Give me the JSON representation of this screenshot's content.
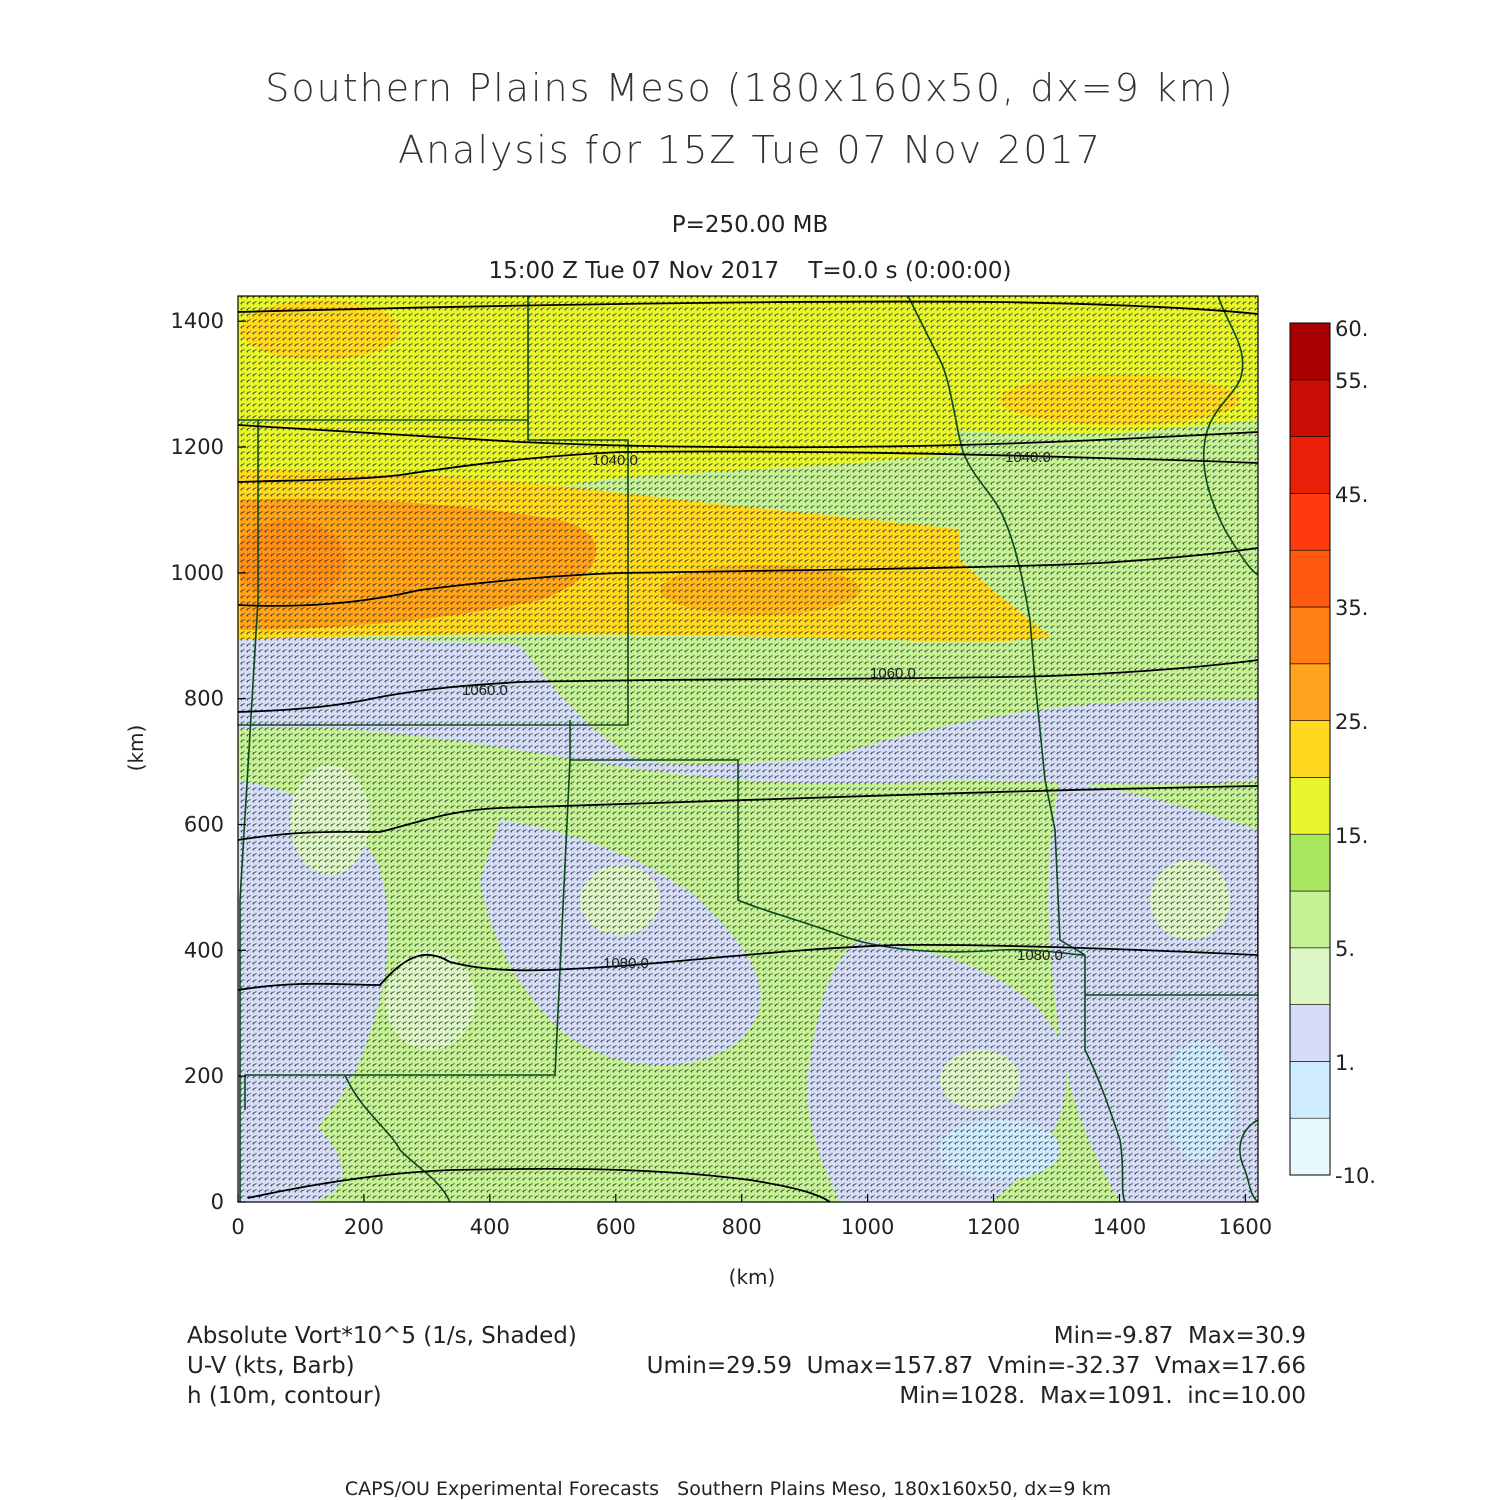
{
  "title_line1": "Southern Plains Meso (180x160x50, dx=9 km)",
  "title_line2": "Analysis for 15Z Tue 07 Nov 2017",
  "level_label": "P=250.00 MB",
  "time_label": "15:00 Z Tue 07 Nov 2017    T=0.0 s (0:00:00)",
  "x_axis": {
    "label": "(km)",
    "min": 0,
    "max": 1620,
    "ticks": [
      0,
      200,
      400,
      600,
      800,
      1000,
      1200,
      1400,
      1600
    ]
  },
  "y_axis": {
    "label": "(km)",
    "min": 0,
    "max": 1440,
    "ticks": [
      0,
      200,
      400,
      600,
      800,
      1000,
      1200,
      1400
    ]
  },
  "colorbar": {
    "labels": [
      "60.",
      "55.",
      "45.",
      "35.",
      "25.",
      "15.",
      "5.",
      "1.",
      "-10."
    ],
    "colors": [
      "#e8f8ff",
      "#cfecff",
      "#d4dcf6",
      "#dcf6c6",
      "#c6f296",
      "#a8e85e",
      "#e8f62e",
      "#ffd820",
      "#ffa41c",
      "#ff7e16",
      "#ff5a10",
      "#ff3a0c",
      "#e82008",
      "#c80e04",
      "#a80000"
    ]
  },
  "contours": {
    "labels": [
      {
        "text": "1040.0",
        "x": 620,
        "y": 1185
      },
      {
        "text": "1040.0",
        "x": 1280,
        "y": 1185
      },
      {
        "text": "1060.0",
        "x": 1070,
        "y": 840
      },
      {
        "text": "1060.0",
        "x": 390,
        "y": 818
      },
      {
        "text": "1080.0",
        "x": 620,
        "y": 393
      },
      {
        "text": "1080.0",
        "x": 1240,
        "y": 400
      }
    ]
  },
  "legend": {
    "left": [
      "Absolute Vort*10^5 (1/s, Shaded)",
      "U-V (kts, Barb)",
      "h (10m, contour)"
    ],
    "right": [
      "Min=-9.87  Max=30.9",
      "Umin=29.59  Umax=157.87  Vmin=-32.37  Vmax=17.66",
      "Min=1028.  Max=1091.  inc=10.00"
    ]
  },
  "footer": "CAPS/OU Experimental Forecasts   Southern Plains Meso, 180x160x50, dx=9 km"
}
